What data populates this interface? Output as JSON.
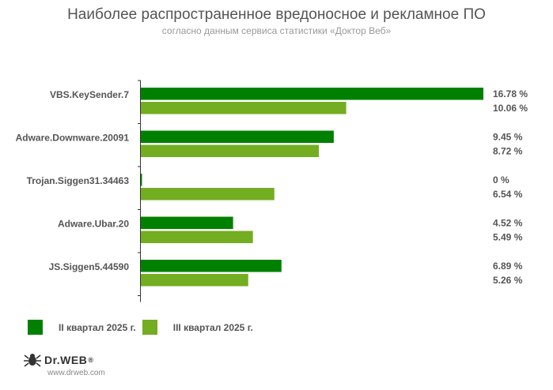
{
  "title": "Наиболее распространенное вредоносное и рекламное ПО",
  "subtitle": "согласно данным сервиса статистики «Доктор Веб»",
  "colors": {
    "series1": "#008000",
    "series2": "#73ad21"
  },
  "logo": {
    "text": "Dr.WEB",
    "mark": "®",
    "url": "www.drweb.com",
    "icon": "spider-icon"
  },
  "chart_data": {
    "type": "bar",
    "orientation": "horizontal",
    "categories": [
      "VBS.KeySender.7",
      "Adware.Downware.20091",
      "Trojan.Siggen31.34463",
      "Adware.Ubar.20",
      "JS.Siggen5.44590"
    ],
    "series": [
      {
        "name": "II квартал 2025 г.",
        "values": [
          16.78,
          9.45,
          0,
          4.52,
          6.89
        ],
        "labels": [
          "16.78 %",
          "9.45 %",
          "0 %",
          "4.52 %",
          "6.89 %"
        ]
      },
      {
        "name": "III квартал 2025 г.",
        "values": [
          10.06,
          8.72,
          6.54,
          5.49,
          5.26
        ],
        "labels": [
          "10.06 %",
          "8.72 %",
          "6.54 %",
          "5.49 %",
          "5.26 %"
        ]
      }
    ],
    "xlim": [
      0,
      16.78
    ],
    "grid": false,
    "legend": "bottom-left"
  }
}
